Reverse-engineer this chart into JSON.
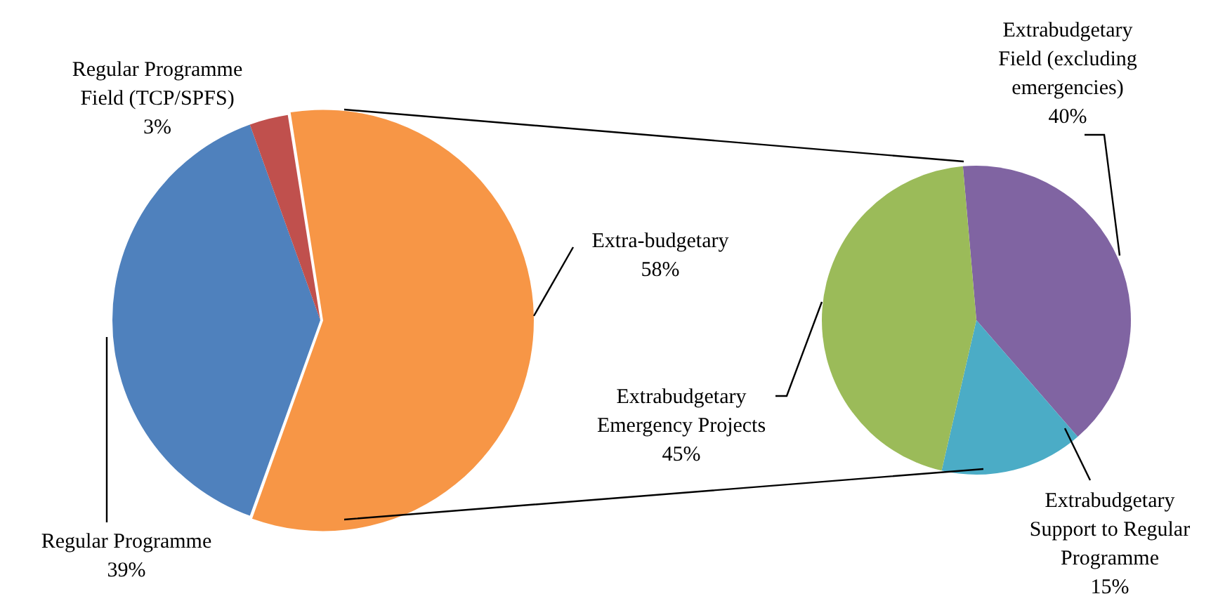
{
  "chart_data": [
    {
      "type": "pie",
      "categories": [
        "Extra-budgetary",
        "Regular Programme",
        "Regular Programme Field (TCP/SPFS)"
      ],
      "values": [
        58,
        39,
        3
      ],
      "colors": [
        "#f79646",
        "#4f81bd",
        "#c0504d"
      ],
      "value_labels": [
        "58%",
        "39%",
        "3%"
      ]
    },
    {
      "type": "pie",
      "categories": [
        "Extrabudgetary Field (excluding emergencies)",
        "Extrabudgetary Support to Regular Programme",
        "Extrabudgetary Emergency Projects"
      ],
      "values": [
        40,
        15,
        45
      ],
      "colors": [
        "#8064a2",
        "#4bacc6",
        "#9bbb59"
      ],
      "value_labels": [
        "40%",
        "15%",
        "45%"
      ]
    }
  ]
}
